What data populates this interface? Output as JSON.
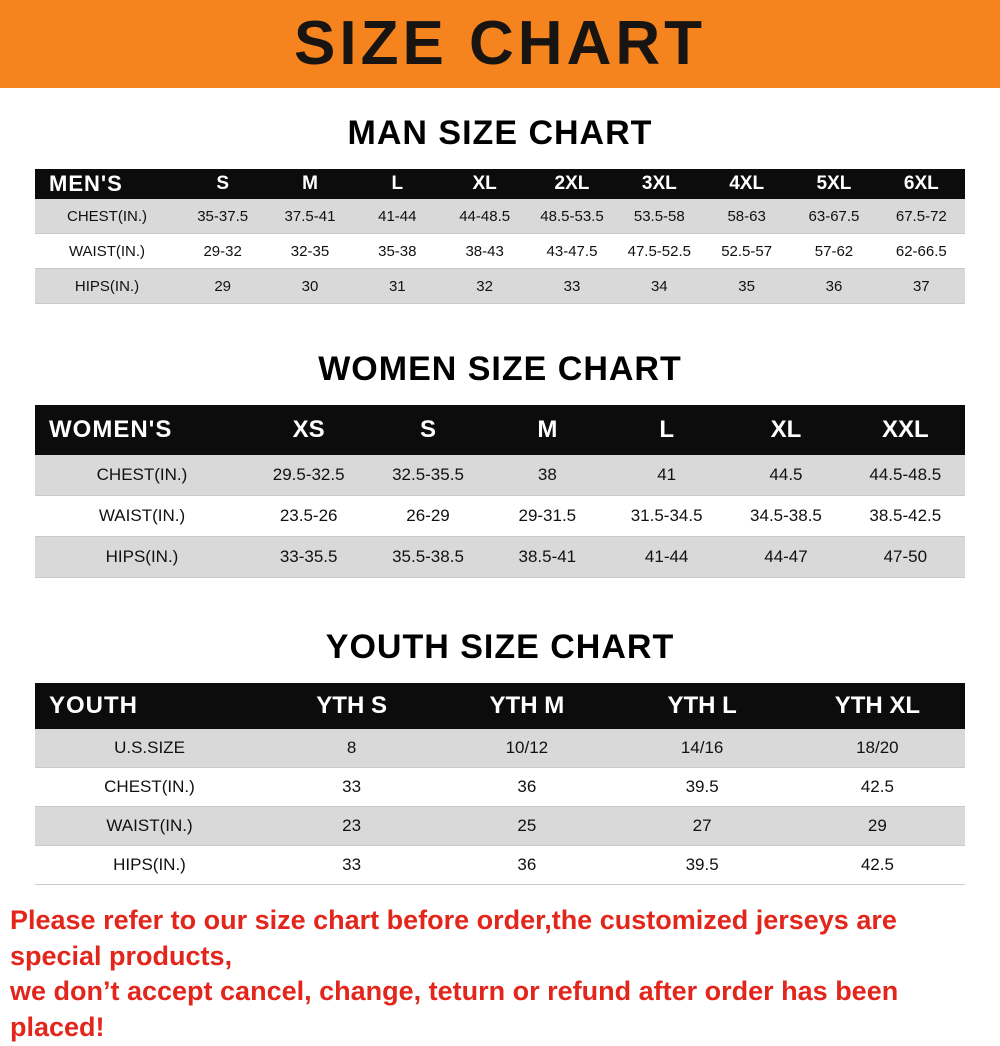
{
  "banner": {
    "title": "SIZE CHART",
    "bg_color": "#F5841E",
    "text_color": "#181411"
  },
  "sections": [
    {
      "title": "MAN SIZE CHART",
      "table": {
        "header": [
          "MEN'S",
          "S",
          "M",
          "L",
          "XL",
          "2XL",
          "3XL",
          "4XL",
          "5XL",
          "6XL"
        ],
        "rows": [
          [
            "CHEST(IN.)",
            "35-37.5",
            "37.5-41",
            "41-44",
            "44-48.5",
            "48.5-53.5",
            "53.5-58",
            "58-63",
            "63-67.5",
            "67.5-72"
          ],
          [
            "WAIST(IN.)",
            "29-32",
            "32-35",
            "35-38",
            "38-43",
            "43-47.5",
            "47.5-52.5",
            "52.5-57",
            "57-62",
            "62-66.5"
          ],
          [
            "HIPS(IN.)",
            "29",
            "30",
            "31",
            "32",
            "33",
            "34",
            "35",
            "36",
            "37"
          ]
        ]
      }
    },
    {
      "title": "WOMEN SIZE CHART",
      "table": {
        "header": [
          "WOMEN'S",
          "XS",
          "S",
          "M",
          "L",
          "XL",
          "XXL"
        ],
        "rows": [
          [
            "CHEST(IN.)",
            "29.5-32.5",
            "32.5-35.5",
            "38",
            "41",
            "44.5",
            "44.5-48.5"
          ],
          [
            "WAIST(IN.)",
            "23.5-26",
            "26-29",
            "29-31.5",
            "31.5-34.5",
            "34.5-38.5",
            "38.5-42.5"
          ],
          [
            "HIPS(IN.)",
            "33-35.5",
            "35.5-38.5",
            "38.5-41",
            "41-44",
            "44-47",
            "47-50"
          ]
        ]
      }
    },
    {
      "title": "YOUTH SIZE CHART",
      "table": {
        "header": [
          "YOUTH",
          "YTH S",
          "YTH M",
          "YTH L",
          "YTH XL"
        ],
        "rows": [
          [
            "U.S.SIZE",
            "8",
            "10/12",
            "14/16",
            "18/20"
          ],
          [
            "CHEST(IN.)",
            "33",
            "36",
            "39.5",
            "42.5"
          ],
          [
            "WAIST(IN.)",
            "23",
            "25",
            "27",
            "29"
          ],
          [
            "HIPS(IN.)",
            "33",
            "36",
            "39.5",
            "42.5"
          ]
        ]
      }
    }
  ],
  "footer": {
    "line1": "Please refer to our size chart before order,the customized jerseys are special products,",
    "line2": "we don’t accept cancel, change, teturn or refund after order has been placed!",
    "text_color": "#E2261C"
  }
}
